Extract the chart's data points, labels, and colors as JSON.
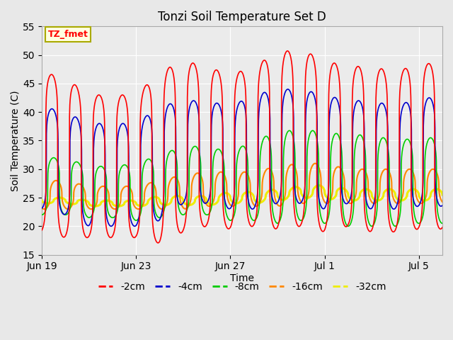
{
  "title": "Tonzi Soil Temperature Set D",
  "xlabel": "Time",
  "ylabel": "Soil Temperature (C)",
  "ylim": [
    15,
    55
  ],
  "annotation": "TZ_fmet",
  "bg_color": "#e8e8e8",
  "plot_bg_color": "#ebebeb",
  "series": {
    "-2cm": {
      "color": "#ff0000",
      "lw": 1.2
    },
    "-4cm": {
      "color": "#0000cc",
      "lw": 1.2
    },
    "-8cm": {
      "color": "#00cc00",
      "lw": 1.2
    },
    "-16cm": {
      "color": "#ff8800",
      "lw": 1.5
    },
    "-32cm": {
      "color": "#eeee00",
      "lw": 2.2
    }
  },
  "tick_dates": [
    {
      "label": "Jun 19",
      "day": 0
    },
    {
      "label": "Jun 23",
      "day": 4
    },
    {
      "label": "Jun 27",
      "day": 8
    },
    {
      "label": "Jul 1",
      "day": 12
    },
    {
      "label": "Jul 5",
      "day": 16
    }
  ],
  "yticks": [
    15,
    20,
    25,
    30,
    35,
    40,
    45,
    50,
    55
  ],
  "legend_labels": [
    "-2cm",
    "-4cm",
    "-8cm",
    "-16cm",
    "-32cm"
  ],
  "legend_colors": [
    "#ff0000",
    "#0000cc",
    "#00cc00",
    "#ff8800",
    "#eeee00"
  ],
  "n_days": 17,
  "pts_per_day": 144
}
